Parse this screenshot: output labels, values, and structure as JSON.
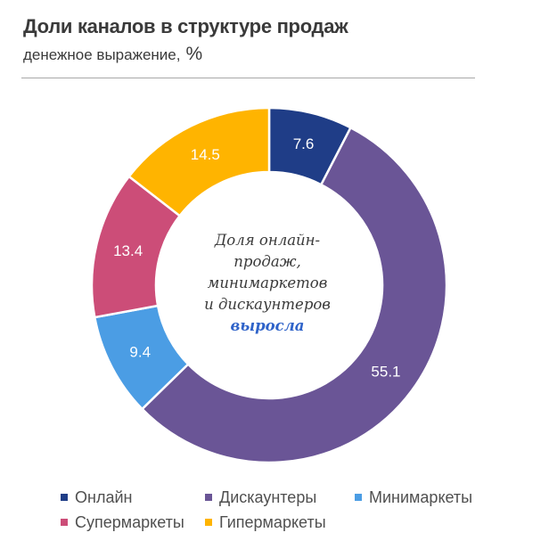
{
  "header": {
    "title": "Доли каналов в структуре продаж",
    "subtitle": "денежное выражение,",
    "unit": "%"
  },
  "center_note": {
    "line1": "Доля онлайн-",
    "line2": "продаж,",
    "line3": "минимаркетов",
    "line4": "и дискаунтеров",
    "emphasis": "выросла"
  },
  "colors": {
    "online": "#1f3d87",
    "discounters": "#6a5596",
    "minimarkets": "#4b9de4",
    "supermarkets": "#cc4d78",
    "hypermarkets": "#ffb400"
  },
  "chart_data": {
    "type": "pie",
    "donut": true,
    "legend_position": "bottom",
    "categories": [
      "Онлайн",
      "Дискаунтеры",
      "Минимаркеты",
      "Супермаркеты",
      "Гипермаркеты"
    ],
    "values": [
      7.6,
      55.1,
      9.4,
      13.4,
      14.5
    ],
    "labels": [
      "7.6",
      "55.1",
      "9.4",
      "13.4",
      "14.5"
    ],
    "colors": [
      "#1f3d87",
      "#6a5596",
      "#4b9de4",
      "#cc4d78",
      "#ffb400"
    ],
    "label_colors": [
      "#ffffff",
      "#ffffff",
      "#ffffff",
      "#ffffff",
      "#ffffff"
    ]
  }
}
